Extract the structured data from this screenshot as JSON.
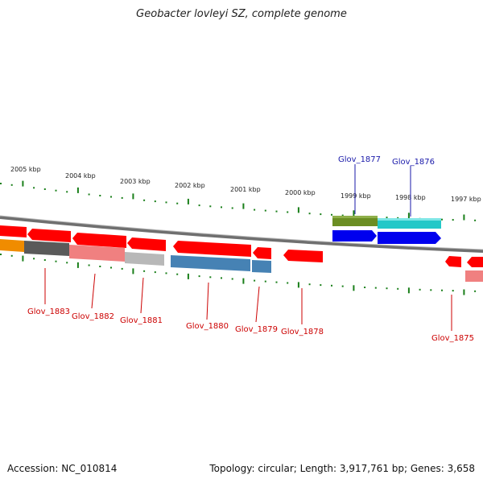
{
  "title": "Geobacter lovleyi SZ, complete genome",
  "accession": "Accession: NC_010814",
  "summary": "Topology: circular; Length: 3,917,761 bp; Genes: 3,658",
  "colors": {
    "forward_red": "#ff0000",
    "tick_green": "#1a7f1a",
    "label_red": "#cc0000",
    "label_blue": "#1a1aaa",
    "backbone": "#808080"
  },
  "tick_labels": [
    "2005 kbp",
    "2004 kbp",
    "2003 kbp",
    "2002 kbp",
    "2001 kbp",
    "2000 kbp",
    "1999 kbp",
    "1998 kbp",
    "1997 kbp"
  ],
  "genes_labeled": [
    {
      "name": "Glov_1883",
      "strand": "reverse"
    },
    {
      "name": "Glov_1882",
      "strand": "reverse"
    },
    {
      "name": "Glov_1881",
      "strand": "reverse"
    },
    {
      "name": "Glov_1880",
      "strand": "reverse"
    },
    {
      "name": "Glov_1879",
      "strand": "reverse"
    },
    {
      "name": "Glov_1878",
      "strand": "reverse"
    },
    {
      "name": "Glov_1877",
      "strand": "forward"
    },
    {
      "name": "Glov_1876",
      "strand": "forward"
    },
    {
      "name": "Glov_1875",
      "strand": "reverse"
    }
  ]
}
